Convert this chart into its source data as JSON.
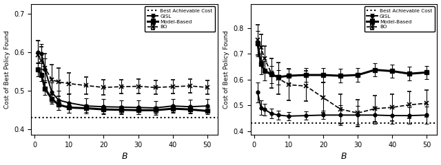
{
  "B": [
    1,
    2,
    3,
    5,
    7,
    10,
    15,
    20,
    25,
    30,
    35,
    40,
    45,
    50
  ],
  "left": {
    "best_achievable": 0.43,
    "ylim": [
      0.385,
      0.725
    ],
    "yticks": [
      0.4,
      0.5,
      0.6,
      0.7
    ],
    "GISL_mean": [
      0.6,
      0.595,
      0.555,
      0.495,
      0.475,
      0.468,
      0.46,
      0.458,
      0.457,
      0.456,
      0.455,
      0.46,
      0.458,
      0.46
    ],
    "GISL_err": [
      0.03,
      0.025,
      0.028,
      0.025,
      0.025,
      0.025,
      0.02,
      0.02,
      0.018,
      0.018,
      0.018,
      0.018,
      0.018,
      0.018
    ],
    "ModelBased_mean": [
      0.555,
      0.54,
      0.505,
      0.478,
      0.463,
      0.456,
      0.454,
      0.451,
      0.45,
      0.449,
      0.449,
      0.453,
      0.451,
      0.447
    ],
    "ModelBased_err": [
      0.018,
      0.016,
      0.016,
      0.013,
      0.013,
      0.013,
      0.01,
      0.01,
      0.01,
      0.01,
      0.009,
      0.009,
      0.009,
      0.009
    ],
    "BO_mean": [
      0.592,
      0.578,
      0.558,
      0.528,
      0.522,
      0.518,
      0.513,
      0.508,
      0.51,
      0.511,
      0.508,
      0.51,
      0.512,
      0.508
    ],
    "BO_err": [
      0.038,
      0.036,
      0.038,
      0.04,
      0.036,
      0.028,
      0.023,
      0.02,
      0.018,
      0.018,
      0.018,
      0.018,
      0.018,
      0.018
    ]
  },
  "right": {
    "best_achievable": 0.43,
    "ylim": [
      0.385,
      0.895
    ],
    "yticks": [
      0.4,
      0.5,
      0.6,
      0.7,
      0.8
    ],
    "GISL_mean": [
      0.55,
      0.49,
      0.484,
      0.468,
      0.462,
      0.458,
      0.46,
      0.462,
      0.462,
      0.462,
      0.462,
      0.46,
      0.46,
      0.462
    ],
    "GISL_err": [
      0.038,
      0.028,
      0.023,
      0.018,
      0.018,
      0.016,
      0.016,
      0.016,
      0.038,
      0.036,
      0.033,
      0.033,
      0.033,
      0.033
    ],
    "ModelBased_mean": [
      0.74,
      0.66,
      0.635,
      0.62,
      0.61,
      0.615,
      0.618,
      0.618,
      0.615,
      0.618,
      0.638,
      0.633,
      0.623,
      0.628
    ],
    "ModelBased_err": [
      0.05,
      0.04,
      0.038,
      0.033,
      0.028,
      0.028,
      0.026,
      0.026,
      0.026,
      0.026,
      0.026,
      0.026,
      0.026,
      0.026
    ],
    "BO_mean": [
      0.755,
      0.725,
      0.682,
      0.625,
      0.605,
      0.58,
      0.575,
      0.53,
      0.485,
      0.47,
      0.487,
      0.492,
      0.502,
      0.508
    ],
    "BO_err": [
      0.058,
      0.052,
      0.048,
      0.058,
      0.062,
      0.062,
      0.058,
      0.058,
      0.058,
      0.052,
      0.052,
      0.052,
      0.052,
      0.052
    ]
  },
  "ylabel": "Cost of Best Policy Found",
  "xlabel": "B",
  "legend_labels": [
    "Best Achievable Cost",
    "GISL",
    "Model-Based",
    "BO"
  ]
}
